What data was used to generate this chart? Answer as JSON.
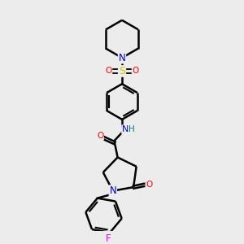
{
  "bg_color": "#ececec",
  "atom_colors": {
    "C": "#000000",
    "N": "#0000cc",
    "O": "#ff0000",
    "S": "#cccc00",
    "F": "#ee00ee",
    "H": "#008080"
  },
  "bond_color": "#000000",
  "bond_width": 1.8,
  "figsize": [
    3.0,
    3.0
  ],
  "dpi": 100
}
